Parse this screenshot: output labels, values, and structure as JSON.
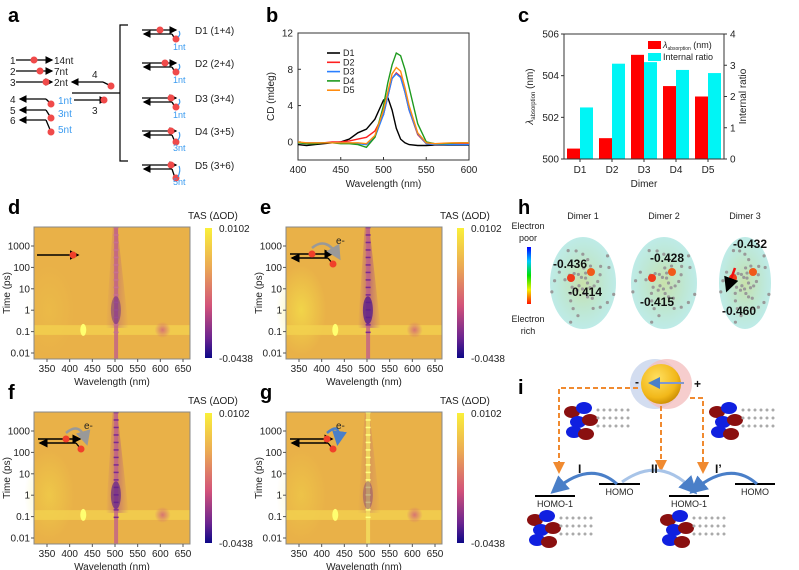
{
  "panel_labels": [
    "a",
    "b",
    "c",
    "d",
    "e",
    "f",
    "g",
    "h",
    "i"
  ],
  "panel_a": {
    "strands": [
      {
        "id": "1",
        "len": "14nt"
      },
      {
        "id": "2",
        "len": "7nt"
      },
      {
        "id": "3",
        "len": "2nt"
      },
      {
        "id": "4",
        "len": "1nt"
      },
      {
        "id": "5",
        "len": "3nt"
      },
      {
        "id": "6",
        "len": "5nt"
      }
    ],
    "mix_top": "4",
    "mix_bottom": "3",
    "dimers": [
      {
        "label": "D1 (1+4)",
        "overhang": "1nt"
      },
      {
        "label": "D2 (2+4)",
        "overhang": "1nt"
      },
      {
        "label": "D3 (3+4)",
        "overhang": "1nt"
      },
      {
        "label": "D4 (3+5)",
        "overhang": "3nt"
      },
      {
        "label": "D5 (3+6)",
        "overhang": "5nt"
      }
    ],
    "colors": {
      "dye": "#F04A4A",
      "overhang": "#3A9BF0"
    }
  },
  "chart_data": [
    {
      "type": "line",
      "panel": "b",
      "xlabel": "Wavelength (nm)",
      "ylabel": "CD (mdeg)",
      "xlim": [
        400,
        600
      ],
      "ylim": [
        -2,
        12
      ],
      "xticks": [
        "400",
        "450",
        "500",
        "550",
        "600"
      ],
      "yticks": [
        "0",
        "4",
        "8",
        "12"
      ],
      "legend_position": "top-left",
      "x": [
        400,
        410,
        420,
        430,
        440,
        450,
        460,
        470,
        480,
        490,
        500,
        505,
        510,
        515,
        520,
        525,
        530,
        540,
        550,
        560,
        570,
        580,
        590,
        600
      ],
      "series": [
        {
          "name": "D1",
          "color": "#000000",
          "values": [
            -0.3,
            -0.4,
            -0.3,
            -0.2,
            -0.1,
            0,
            0.3,
            1.0,
            1.4,
            2.5,
            4.6,
            4.9,
            3.5,
            1.5,
            0.3,
            -0.1,
            -0.3,
            -0.4,
            -0.4,
            -0.35,
            -0.35,
            -0.35,
            -0.35,
            -0.35
          ]
        },
        {
          "name": "D2",
          "color": "#FF2020",
          "values": [
            -0.1,
            -0.1,
            -0.1,
            -0.1,
            0,
            0,
            0.1,
            0.3,
            0.5,
            1.2,
            3.0,
            5.0,
            7.0,
            7.6,
            7.2,
            5.5,
            3.5,
            0.8,
            -0.2,
            -0.3,
            -0.3,
            -0.25,
            -0.2,
            -0.2
          ]
        },
        {
          "name": "D3",
          "color": "#2A7FFF",
          "values": [
            -0.1,
            -0.1,
            -0.1,
            -0.1,
            -0.1,
            -0.1,
            -0.1,
            -0.2,
            -0.3,
            0.5,
            3.0,
            5.0,
            7.0,
            7.5,
            7.1,
            5.5,
            3.5,
            0.9,
            -0.2,
            -0.3,
            -0.3,
            -0.3,
            -0.3,
            -0.3
          ]
        },
        {
          "name": "D4",
          "color": "#1E9A1E",
          "values": [
            -0.1,
            -0.2,
            -0.2,
            -0.1,
            -0.1,
            -0.2,
            -0.2,
            -0.3,
            -0.6,
            0.5,
            4.0,
            6.5,
            8.5,
            9.8,
            9.5,
            8.0,
            6.0,
            2.0,
            0,
            -0.2,
            -0.2,
            -0.15,
            -0.1,
            -0.1
          ]
        },
        {
          "name": "D5",
          "color": "#FF8C10",
          "values": [
            0,
            -0.1,
            -0.1,
            -0.1,
            -0.1,
            -0.1,
            -0.1,
            -0.1,
            -0.2,
            0.7,
            3.5,
            5.5,
            7.5,
            8.2,
            7.8,
            6.0,
            4.0,
            1.0,
            -0.1,
            -0.2,
            -0.15,
            -0.1,
            -0.1,
            -0.1
          ]
        }
      ]
    },
    {
      "type": "bar",
      "panel": "c",
      "categories": [
        "D1",
        "D2",
        "D3",
        "D4",
        "D5"
      ],
      "xlabel": "Dimer",
      "ylabel": "λabsorption (nm)",
      "ylabel_main": "λ",
      "ylabel_sub": "absorption",
      "ylabel_unit": " (nm)",
      "y2label": "Internal ratio",
      "ylim": [
        500,
        506
      ],
      "y2lim": [
        0,
        4
      ],
      "yticks": [
        "500",
        "502",
        "504",
        "506"
      ],
      "y2ticks": [
        "0",
        "1",
        "2",
        "3",
        "4"
      ],
      "legend_position": "top-right",
      "series": [
        {
          "name": "λabsorption (nm)",
          "color": "#FF0000",
          "axis": "left",
          "values": [
            500.5,
            501.0,
            505.0,
            503.5,
            503.0
          ]
        },
        {
          "name": "Internal ratio",
          "color": "#00F5F5",
          "axis": "right",
          "values": [
            1.65,
            3.05,
            3.1,
            2.85,
            2.75
          ]
        }
      ]
    },
    {
      "type": "heatmap",
      "panel": "d",
      "xlabel": "Wavelength (nm)",
      "ylabel": "Time (ps)",
      "xlim": [
        325,
        650
      ],
      "ylim": [
        0.005,
        8000
      ],
      "y_scale": "log",
      "colorbar_label": "TAS (ΔOD)",
      "colorbar_range": [
        -0.0438,
        0.0102
      ]
    },
    {
      "type": "heatmap",
      "panel": "e",
      "xlabel": "Wavelength (nm)",
      "ylabel": "Time (ps)",
      "xlim": [
        325,
        650
      ],
      "ylim": [
        0.005,
        8000
      ],
      "y_scale": "log",
      "colorbar_label": "TAS (ΔOD)",
      "colorbar_range": [
        -0.0438,
        0.0102
      ]
    },
    {
      "type": "heatmap",
      "panel": "f",
      "xlabel": "Wavelength (nm)",
      "ylabel": "Time (ps)",
      "xlim": [
        325,
        650
      ],
      "ylim": [
        0.005,
        8000
      ],
      "y_scale": "log",
      "colorbar_label": "TAS (ΔOD)",
      "colorbar_range": [
        -0.0438,
        0.0102
      ]
    },
    {
      "type": "heatmap",
      "panel": "g",
      "xlabel": "Wavelength (nm)",
      "ylabel": "Time (ps)",
      "xlim": [
        325,
        650
      ],
      "ylim": [
        0.005,
        8000
      ],
      "y_scale": "log",
      "colorbar_label": "TAS (ΔOD)",
      "colorbar_range": [
        -0.0438,
        0.0102
      ]
    }
  ],
  "heatmap_common": {
    "xticks": [
      "350",
      "400",
      "450",
      "500",
      "550",
      "600",
      "650"
    ],
    "yticks": [
      "1000",
      "100",
      "10",
      "1",
      "0.1",
      "0.01"
    ],
    "xlabel": "Wavelength (nm)",
    "ylabel": "Time (ps)",
    "cbar_title": "TAS (ΔOD)",
    "cbar_max": "0.0102",
    "cbar_min": "-0.0438",
    "electron_label": "e-"
  },
  "panel_h": {
    "legend_top": [
      "Electron",
      "poor"
    ],
    "legend_bottom": [
      "Electron",
      "rich"
    ],
    "dimers": [
      {
        "title": "Dimer 1",
        "charges": [
          "-0.436",
          "-0.414"
        ]
      },
      {
        "title": "Dimer 2",
        "charges": [
          "-0.428",
          "-0.415"
        ]
      },
      {
        "title": "Dimer 3",
        "charges": [
          "-0.432",
          "-0.460"
        ]
      }
    ]
  },
  "panel_i": {
    "dipole_minus": "-",
    "dipole_plus": "+",
    "paths": [
      "I",
      "II",
      "I’"
    ],
    "levels": [
      "HOMO-1",
      "HOMO",
      "HOMO-1",
      "HOMO"
    ],
    "colors": {
      "dashed": "#F08A30",
      "arrow": "#4A7FC8",
      "sphere": "#F2B81A"
    }
  }
}
